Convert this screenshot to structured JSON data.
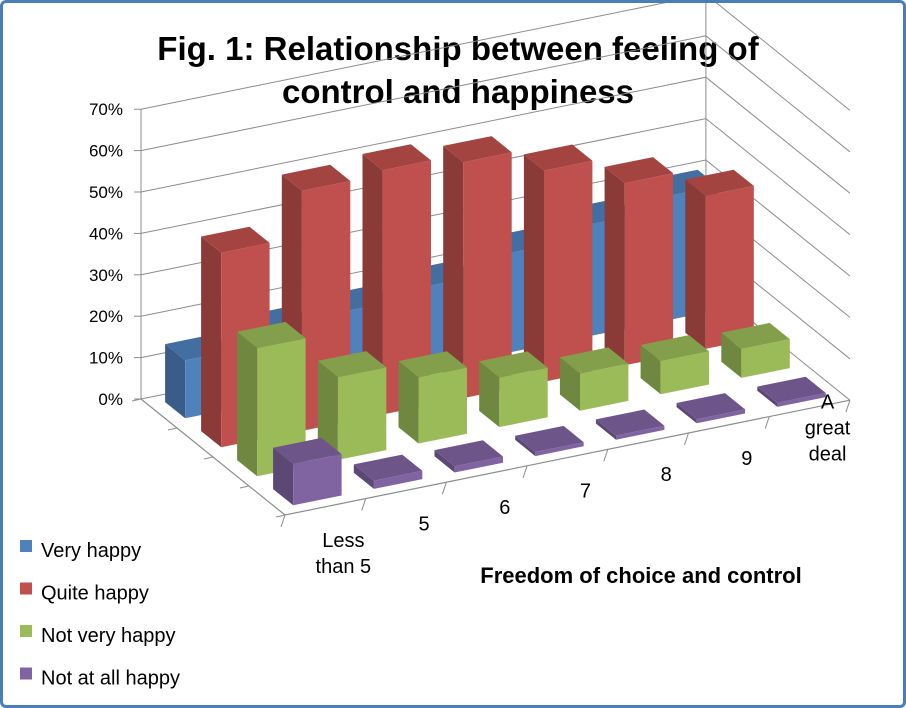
{
  "chart_data": {
    "type": "bar",
    "variant": "3d-column",
    "title": "Fig. 1: Relationship between feeling of control and happiness",
    "title_lines": [
      "Fig. 1: Relationship between feeling of",
      "control and happiness"
    ],
    "xlabel": "Freedom of choice and control",
    "ylabel": "",
    "categories": [
      "Less than 5",
      "5",
      "6",
      "7",
      "8",
      "9",
      "A great deal"
    ],
    "category_lines": [
      [
        "Less",
        "than 5"
      ],
      [
        "5"
      ],
      [
        "6"
      ],
      [
        "7"
      ],
      [
        "8"
      ],
      [
        "9"
      ],
      [
        "A",
        "great",
        "deal"
      ]
    ],
    "yticks": [
      "0%",
      "10%",
      "20%",
      "30%",
      "40%",
      "50%",
      "60%",
      "70%"
    ],
    "ylim": [
      0,
      70
    ],
    "grid": true,
    "legend_position": "bottom-left",
    "series": [
      {
        "name": "Very happy",
        "color": "#4f81bd",
        "values": [
          14,
          17,
          18,
          20,
          24,
          27,
          30
        ]
      },
      {
        "name": "Quite happy",
        "color": "#c0504d",
        "values": [
          47,
          58,
          59,
          57,
          51,
          44,
          37
        ]
      },
      {
        "name": "Not very happy",
        "color": "#9bbb59",
        "values": [
          31,
          20,
          16,
          12,
          9,
          8,
          7
        ]
      },
      {
        "name": "Not at all happy",
        "color": "#8064a2",
        "values": [
          10,
          2,
          1.5,
          1,
          1,
          1,
          1
        ]
      }
    ]
  },
  "frame_color": "#4a7ebb"
}
